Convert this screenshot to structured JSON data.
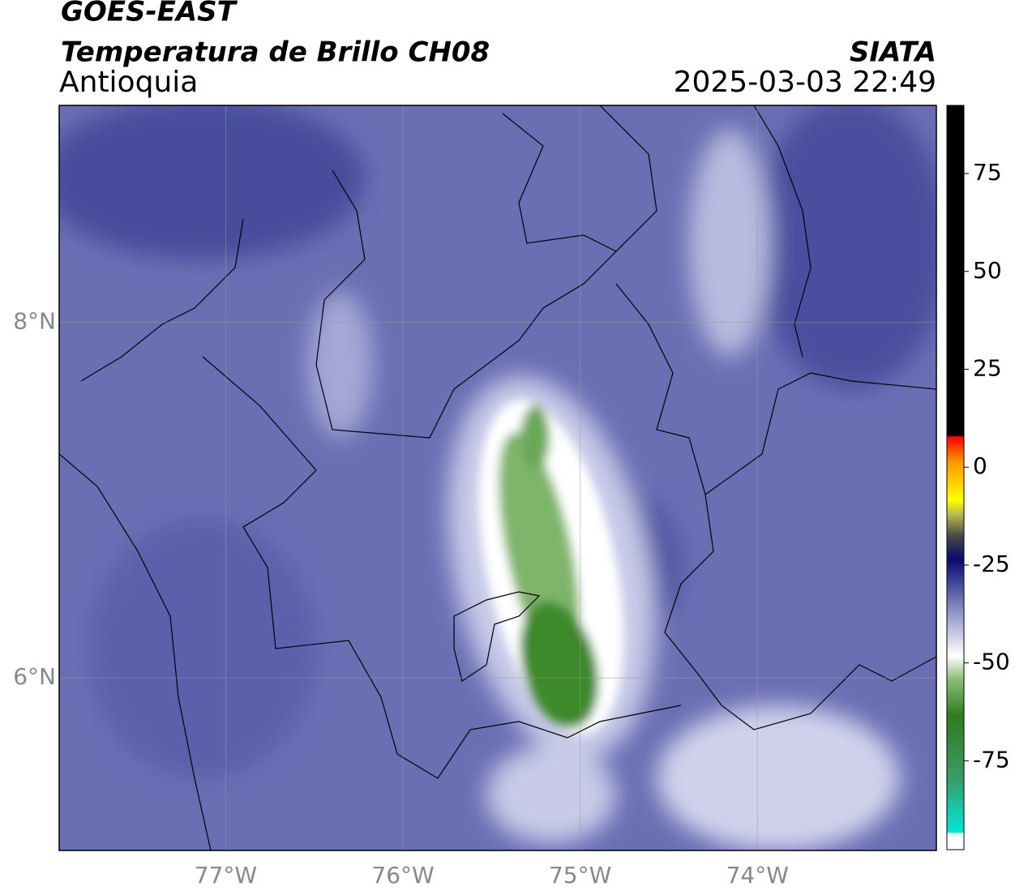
{
  "header": {
    "title": "GOES-EAST",
    "subtitle": "Temperatura de Brillo CH08",
    "region": "Antioquia",
    "source": "SIATA",
    "datetime": "2025-03-03 22:49"
  },
  "map": {
    "xlim": [
      -77.94,
      -72.99
    ],
    "ylim": [
      5.03,
      9.22
    ],
    "xticks": [
      {
        "value": -77,
        "label": "77°W"
      },
      {
        "value": -76,
        "label": "76°W"
      },
      {
        "value": -75,
        "label": "75°W"
      },
      {
        "value": -74,
        "label": "74°W"
      }
    ],
    "yticks": [
      {
        "value": 8,
        "label": "8°N"
      },
      {
        "value": 6,
        "label": "6°N"
      }
    ],
    "grid": true
  },
  "colorbar": {
    "lim": [
      -97.7,
      92.4
    ],
    "ticks": [
      75,
      50,
      25,
      0,
      -25,
      -50,
      -75
    ]
  }
}
